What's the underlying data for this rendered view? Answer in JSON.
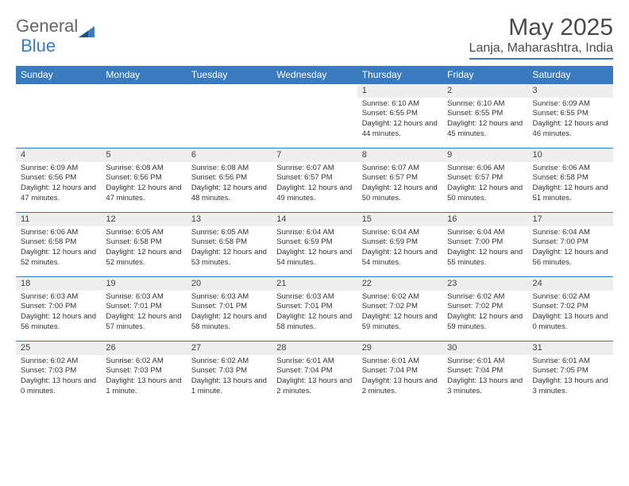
{
  "brand": {
    "part1": "General",
    "part2": "Blue",
    "icon_color": "#3a7bbf",
    "text_color_1": "#666666",
    "text_color_2": "#3a7bbf"
  },
  "title": {
    "month": "May 2025",
    "location": "Lanja, Maharashtra, India"
  },
  "theme": {
    "header_bg": "#3a7bbf",
    "header_fg": "#ffffff",
    "daynum_bg": "#eeeeee",
    "border_color": "#3a7bbf",
    "text_color": "#333333",
    "title_color": "#4a4a4a"
  },
  "weekdays": [
    "Sunday",
    "Monday",
    "Tuesday",
    "Wednesday",
    "Thursday",
    "Friday",
    "Saturday"
  ],
  "weeks": [
    {
      "nums": [
        "",
        "",
        "",
        "",
        "1",
        "2",
        "3"
      ],
      "details": [
        "",
        "",
        "",
        "",
        "Sunrise: 6:10 AM\nSunset: 6:55 PM\nDaylight: 12 hours and 44 minutes.",
        "Sunrise: 6:10 AM\nSunset: 6:55 PM\nDaylight: 12 hours and 45 minutes.",
        "Sunrise: 6:09 AM\nSunset: 6:55 PM\nDaylight: 12 hours and 46 minutes."
      ]
    },
    {
      "nums": [
        "4",
        "5",
        "6",
        "7",
        "8",
        "9",
        "10"
      ],
      "details": [
        "Sunrise: 6:09 AM\nSunset: 6:56 PM\nDaylight: 12 hours and 47 minutes.",
        "Sunrise: 6:08 AM\nSunset: 6:56 PM\nDaylight: 12 hours and 47 minutes.",
        "Sunrise: 6:08 AM\nSunset: 6:56 PM\nDaylight: 12 hours and 48 minutes.",
        "Sunrise: 6:07 AM\nSunset: 6:57 PM\nDaylight: 12 hours and 49 minutes.",
        "Sunrise: 6:07 AM\nSunset: 6:57 PM\nDaylight: 12 hours and 50 minutes.",
        "Sunrise: 6:06 AM\nSunset: 6:57 PM\nDaylight: 12 hours and 50 minutes.",
        "Sunrise: 6:06 AM\nSunset: 6:58 PM\nDaylight: 12 hours and 51 minutes."
      ]
    },
    {
      "nums": [
        "11",
        "12",
        "13",
        "14",
        "15",
        "16",
        "17"
      ],
      "details": [
        "Sunrise: 6:06 AM\nSunset: 6:58 PM\nDaylight: 12 hours and 52 minutes.",
        "Sunrise: 6:05 AM\nSunset: 6:58 PM\nDaylight: 12 hours and 52 minutes.",
        "Sunrise: 6:05 AM\nSunset: 6:58 PM\nDaylight: 12 hours and 53 minutes.",
        "Sunrise: 6:04 AM\nSunset: 6:59 PM\nDaylight: 12 hours and 54 minutes.",
        "Sunrise: 6:04 AM\nSunset: 6:59 PM\nDaylight: 12 hours and 54 minutes.",
        "Sunrise: 6:04 AM\nSunset: 7:00 PM\nDaylight: 12 hours and 55 minutes.",
        "Sunrise: 6:04 AM\nSunset: 7:00 PM\nDaylight: 12 hours and 56 minutes."
      ]
    },
    {
      "nums": [
        "18",
        "19",
        "20",
        "21",
        "22",
        "23",
        "24"
      ],
      "details": [
        "Sunrise: 6:03 AM\nSunset: 7:00 PM\nDaylight: 12 hours and 56 minutes.",
        "Sunrise: 6:03 AM\nSunset: 7:01 PM\nDaylight: 12 hours and 57 minutes.",
        "Sunrise: 6:03 AM\nSunset: 7:01 PM\nDaylight: 12 hours and 58 minutes.",
        "Sunrise: 6:03 AM\nSunset: 7:01 PM\nDaylight: 12 hours and 58 minutes.",
        "Sunrise: 6:02 AM\nSunset: 7:02 PM\nDaylight: 12 hours and 59 minutes.",
        "Sunrise: 6:02 AM\nSunset: 7:02 PM\nDaylight: 12 hours and 59 minutes.",
        "Sunrise: 6:02 AM\nSunset: 7:02 PM\nDaylight: 13 hours and 0 minutes."
      ]
    },
    {
      "nums": [
        "25",
        "26",
        "27",
        "28",
        "29",
        "30",
        "31"
      ],
      "details": [
        "Sunrise: 6:02 AM\nSunset: 7:03 PM\nDaylight: 13 hours and 0 minutes.",
        "Sunrise: 6:02 AM\nSunset: 7:03 PM\nDaylight: 13 hours and 1 minute.",
        "Sunrise: 6:02 AM\nSunset: 7:03 PM\nDaylight: 13 hours and 1 minute.",
        "Sunrise: 6:01 AM\nSunset: 7:04 PM\nDaylight: 13 hours and 2 minutes.",
        "Sunrise: 6:01 AM\nSunset: 7:04 PM\nDaylight: 13 hours and 2 minutes.",
        "Sunrise: 6:01 AM\nSunset: 7:04 PM\nDaylight: 13 hours and 3 minutes.",
        "Sunrise: 6:01 AM\nSunset: 7:05 PM\nDaylight: 13 hours and 3 minutes."
      ]
    }
  ]
}
